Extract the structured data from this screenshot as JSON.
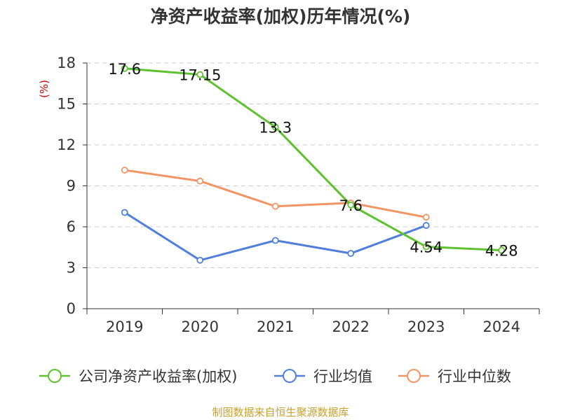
{
  "chart_data": {
    "type": "line",
    "title": "净资产收益率(加权)历年情况(%)",
    "ylabel": "(%)",
    "xlabel": "",
    "categories": [
      "2019",
      "2020",
      "2021",
      "2022",
      "2023",
      "2024"
    ],
    "ylim": [
      0,
      18
    ],
    "yticks": [
      0,
      3,
      6,
      9,
      12,
      15,
      18
    ],
    "grid": true,
    "legend_position": "bottom",
    "series": [
      {
        "name": "公司净资产收益率(加权)",
        "color": "#5ec12e",
        "values": [
          17.6,
          17.15,
          13.3,
          7.6,
          4.54,
          4.28
        ],
        "data_labels": [
          "17.6",
          "17.15",
          "13.3",
          "7.6",
          "4.54",
          "4.28"
        ]
      },
      {
        "name": "行业均值",
        "color": "#4f7fd9",
        "values": [
          7.05,
          3.55,
          5.0,
          4.05,
          6.1,
          null
        ]
      },
      {
        "name": "行业中位数",
        "color": "#f29565",
        "values": [
          10.15,
          9.35,
          7.5,
          7.75,
          6.7,
          null
        ]
      }
    ]
  },
  "source": "制图数据来自恒生聚源数据库",
  "colors": {
    "ylabel": "#cc0000",
    "source": "#c8a030",
    "grid": "#cccccc",
    "axis": "#333333"
  }
}
